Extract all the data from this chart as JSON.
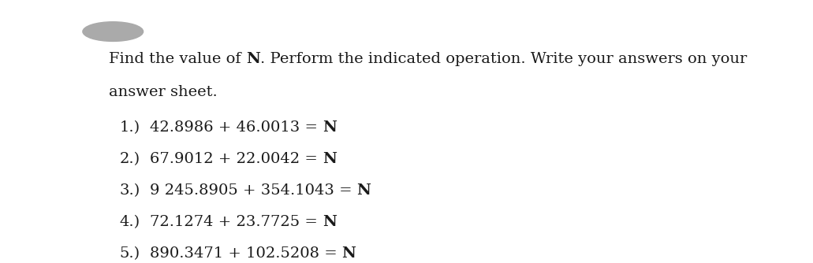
{
  "background_color": "#ffffff",
  "fig_width": 10.31,
  "fig_height": 3.34,
  "dpi": 100,
  "text_color": "#1a1a1a",
  "circle_color": "#aaaaaa",
  "font_family": "DejaVu Serif",
  "font_size": 14.0,
  "header_line1_normal": "Find the value of ",
  "header_line1_bold": "N",
  "header_line1_normal2": ". Perform the indicated operation. Write your answers on your",
  "header_line2": "answer sheet.",
  "items": [
    {
      "num": "1.) ",
      "expr": "42.8986 + 46.0013 = ",
      "bold": "N"
    },
    {
      "num": "2.) ",
      "expr": "67.9012 + 22.0042 = ",
      "bold": "N"
    },
    {
      "num": "3.) ",
      "expr": "9 245.8905 + 354.1043 = ",
      "bold": "N"
    },
    {
      "num": "4.) ",
      "expr": "72.1274 + 23.7725 = ",
      "bold": "N"
    },
    {
      "num": "5.) ",
      "expr": "890.3471 + 102.5208 = ",
      "bold": "N"
    }
  ]
}
